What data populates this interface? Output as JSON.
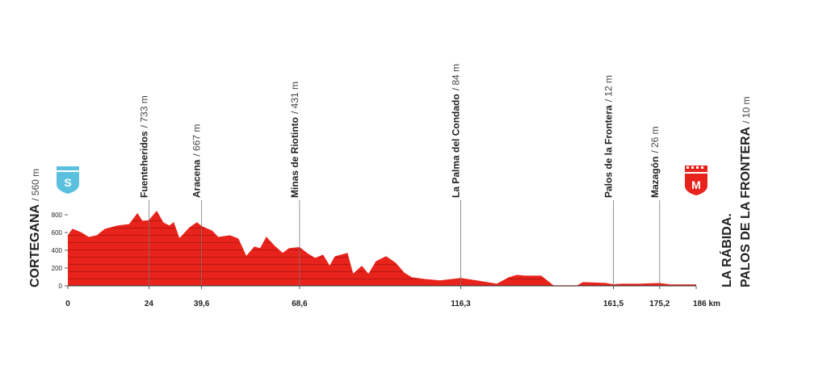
{
  "chart_data": {
    "type": "area",
    "x": [
      0,
      1.4,
      3.8,
      6.2,
      8.6,
      11,
      14.6,
      18.2,
      20.6,
      22,
      24,
      26.3,
      28.2,
      30.1,
      31.3,
      33,
      36.1,
      38.2,
      39.6,
      42.6,
      44.5,
      48,
      50.4,
      52.8,
      55.2,
      57,
      58.8,
      61.2,
      63.6,
      65.5,
      68.6,
      70.8,
      73.2,
      75.5,
      77.5,
      79.1,
      82.7,
      84.4,
      87,
      89,
      91.3,
      94.2,
      97,
      99.5,
      101.8,
      105.4,
      110.2,
      116.3,
      121,
      127,
      130.5,
      133,
      135.3,
      140.1,
      143.7,
      150.8,
      152.5,
      159.2,
      161.5,
      164,
      168.8,
      175.2,
      178.3,
      186
    ],
    "values": [
      560,
      636,
      600,
      545,
      564,
      636,
      673,
      690,
      810,
      727,
      733,
      836,
      709,
      673,
      709,
      527,
      655,
      709,
      667,
      618,
      545,
      564,
      527,
      327,
      436,
      418,
      545,
      445,
      364,
      418,
      431,
      364,
      309,
      345,
      218,
      327,
      364,
      127,
      218,
      127,
      273,
      327,
      255,
      145,
      91,
      73,
      55,
      84,
      55,
      18,
      91,
      118,
      109,
      109,
      0,
      0,
      36,
      27,
      12,
      18,
      18,
      26,
      10,
      10
    ],
    "color": "#e8231b",
    "xlim": [
      0,
      186
    ],
    "ylim": [
      0,
      800
    ],
    "yticks": [
      0,
      200,
      400,
      600,
      800
    ],
    "xticks": [
      0,
      24,
      {
        "value": 39.6,
        "label": "39,6"
      },
      {
        "value": 68.6,
        "label": "68,6"
      },
      {
        "value": 116.3,
        "label": "116,3"
      },
      {
        "value": 161.5,
        "label": "161,5"
      },
      {
        "value": 175.2,
        "label": "175,2"
      },
      {
        "value": 186,
        "label": "186 km"
      }
    ],
    "waypoints": [
      {
        "name": "Fuenteheridos",
        "elevation": "/ 733 m"
      },
      {
        "name": "Aracena",
        "elevation": "/ 667 m"
      },
      {
        "name": "Minas de Riotinto",
        "elevation": "/ 431 m"
      },
      {
        "name": "La Palma del Condado",
        "elevation": "/ 84 m"
      },
      {
        "name": "Palos de la Frontera",
        "elevation": "/ 12 m"
      },
      {
        "name": "Mazagón",
        "elevation": "/ 26 m"
      }
    ],
    "start": {
      "name": "CORTEGANA",
      "elevation": "/ 560 m",
      "icon": "S"
    },
    "finish": {
      "name_lines": [
        "LA RÁBIDA.",
        "PALOS DE LA FRONTERA"
      ],
      "elevation": "/ 10 m",
      "icon": "M"
    }
  }
}
